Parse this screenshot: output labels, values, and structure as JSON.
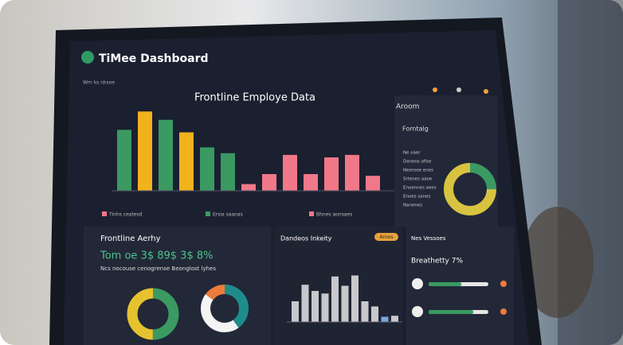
{
  "header": {
    "title": "TiMee Dashboard",
    "nav": "Wm ks nksoe",
    "subtitle": "Frontline Employe Data"
  },
  "main_chart": {
    "ylim": [
      0,
      100
    ],
    "values": [
      73,
      95,
      85,
      70,
      52,
      45,
      8,
      20,
      43,
      20,
      40,
      43,
      18
    ],
    "colors": [
      "#3a9a62",
      "#f2b21b",
      "#3a9a62",
      "#f2b21b",
      "#3a9a62",
      "#3a9a62",
      "#f07888",
      "#f07888",
      "#f07888",
      "#f07888",
      "#f07888",
      "#f07888",
      "#f07888"
    ],
    "legend": [
      "Tinhs ceatesd",
      "Ersia saanas",
      "Bhnes aonsaes"
    ]
  },
  "side_panel": {
    "title": "Aroom",
    "subtitle": "Forntalg",
    "labels": [
      "Ne oaer",
      "Daneos ofise",
      "Neeroee enes",
      "Srtenes aaoe",
      "Enoennes aees",
      "Enoes sanes",
      "Nanenes"
    ],
    "donut": {
      "values": [
        25,
        75
      ],
      "colors": [
        "#3a9a62",
        "#d8c341"
      ]
    }
  },
  "activity": {
    "title": "Frontline Aerhy",
    "stats": "Tom oe 3$ 89$ 3$ 8%",
    "note": "Ncs nocouse cenogrense Beonglost lyhes",
    "donut_a": {
      "values": [
        50,
        50
      ],
      "colors": [
        "#3a9a62",
        "#e6c22e"
      ]
    },
    "donut_b": {
      "values": [
        40,
        45,
        15
      ],
      "colors": [
        "#1f8c8c",
        "#f4f4f4",
        "#ee7a3a"
      ]
    }
  },
  "inventory": {
    "title": "Dandeos Inkeity",
    "badge": "Aroos",
    "values": [
      40,
      72,
      60,
      55,
      88,
      70,
      90,
      40,
      30,
      10,
      12
    ],
    "ylim": [
      0,
      100
    ]
  },
  "progress": {
    "title": "Nes Vessoes",
    "subtitle": "Breathetty 7%",
    "values": [
      55,
      75
    ],
    "ylim": [
      0,
      100
    ]
  }
}
